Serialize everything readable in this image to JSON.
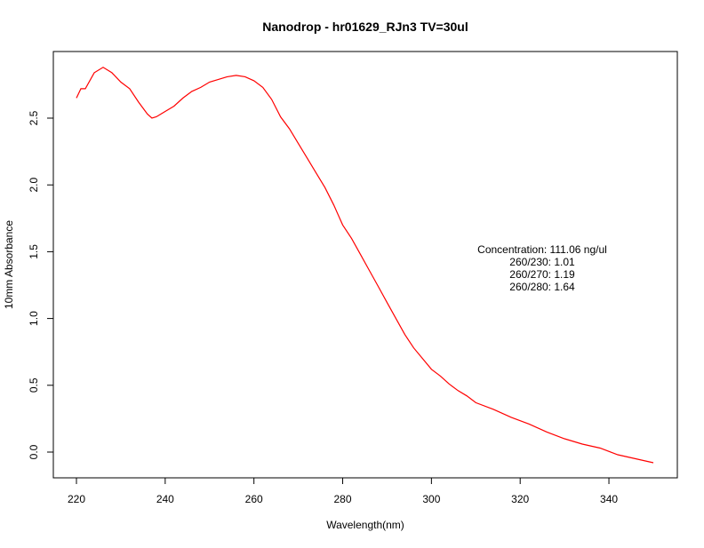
{
  "chart_data": {
    "type": "line",
    "title": "Nanodrop - hr01629_RJn3  TV=30ul",
    "xlabel": "Wavelength(nm)",
    "ylabel": "10mm Absorbance",
    "xlim": [
      215,
      355
    ],
    "ylim": [
      -0.2,
      2.99
    ],
    "xticks": [
      220,
      240,
      260,
      280,
      300,
      320,
      340
    ],
    "yticks": [
      0.0,
      0.5,
      1.0,
      1.5,
      2.0,
      2.5
    ],
    "ytick_labels": [
      "0.0",
      "0.5",
      "1.0",
      "1.5",
      "2.0",
      "2.5"
    ],
    "grid": false,
    "series": [
      {
        "name": "absorbance",
        "color": "#ff0000",
        "x": [
          220,
          221,
          222,
          224,
          226,
          228,
          230,
          232,
          234,
          236,
          237,
          238,
          240,
          242,
          244,
          246,
          248,
          250,
          252,
          254,
          256,
          258,
          260,
          262,
          264,
          266,
          268,
          270,
          272,
          274,
          276,
          278,
          280,
          282,
          284,
          286,
          288,
          290,
          292,
          294,
          296,
          298,
          300,
          302,
          304,
          306,
          308,
          310,
          314,
          318,
          322,
          326,
          330,
          334,
          338,
          342,
          346,
          350
        ],
        "y": [
          2.65,
          2.72,
          2.72,
          2.84,
          2.88,
          2.84,
          2.77,
          2.72,
          2.62,
          2.53,
          2.5,
          2.51,
          2.55,
          2.59,
          2.65,
          2.7,
          2.73,
          2.77,
          2.79,
          2.81,
          2.82,
          2.81,
          2.78,
          2.73,
          2.64,
          2.51,
          2.42,
          2.31,
          2.2,
          2.09,
          1.98,
          1.85,
          1.7,
          1.6,
          1.48,
          1.36,
          1.24,
          1.12,
          1.0,
          0.88,
          0.78,
          0.7,
          0.62,
          0.57,
          0.51,
          0.46,
          0.42,
          0.37,
          0.32,
          0.26,
          0.21,
          0.15,
          0.1,
          0.06,
          0.03,
          -0.02,
          -0.05,
          -0.08
        ]
      }
    ],
    "annotations": [
      "Concentration: 111.06 ng/ul",
      "260/230: 1.01",
      "260/270: 1.19",
      "260/280: 1.64"
    ]
  }
}
